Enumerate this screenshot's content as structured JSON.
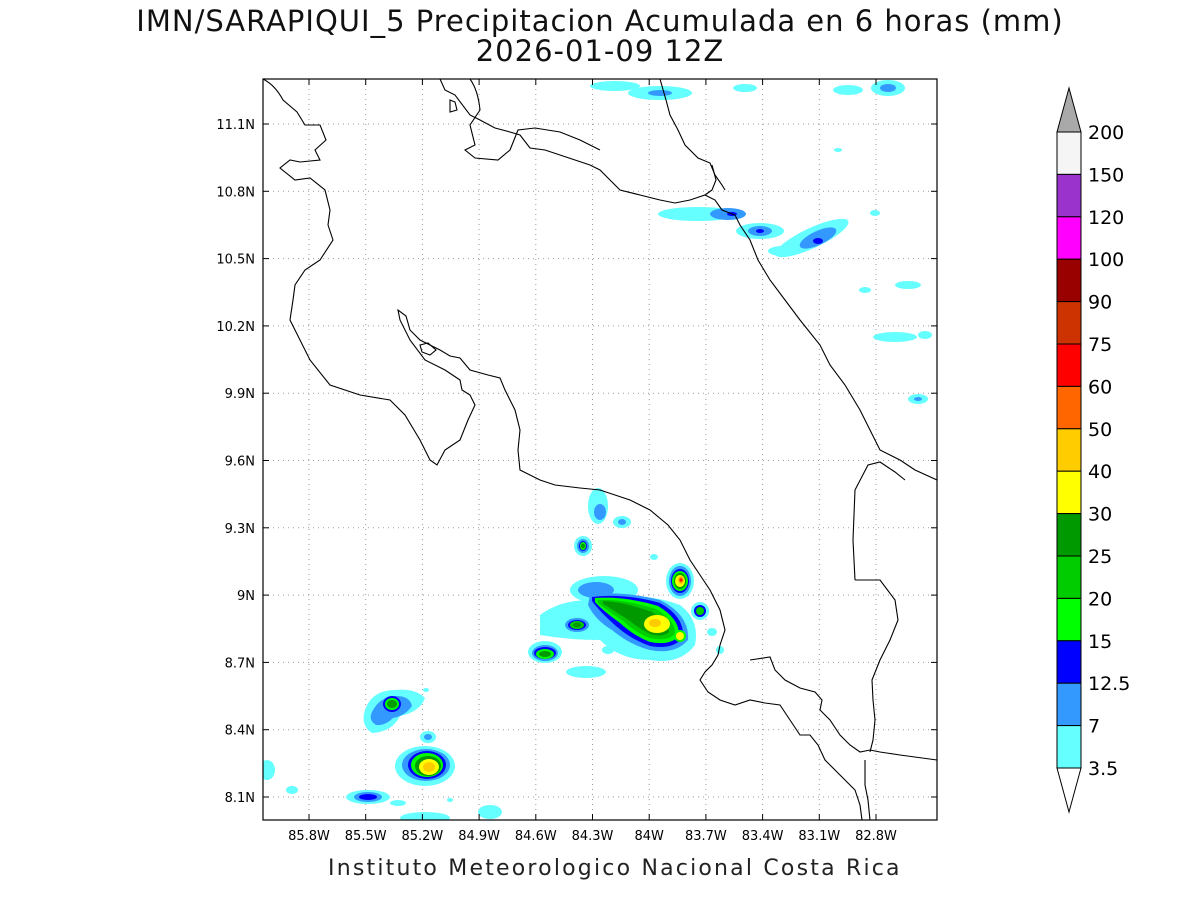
{
  "title_line1": "IMN/SARAPIQUI_5 Precipitacion Acumulada en 6 horas (mm)",
  "title_line2": "2026-01-09 12Z",
  "footer": "Instituto Meteorologico Nacional Costa Rica",
  "map": {
    "lon_range": [
      -86.0,
      -83.0
    ],
    "lat_range": [
      8.0,
      11.2
    ],
    "lon_ticks": [
      "85.8W",
      "85.5W",
      "85.2W",
      "84.9W",
      "84.6W",
      "84.3W",
      "84W",
      "83.7W",
      "83.4W",
      "83.1W",
      "82.8W"
    ],
    "lat_ticks": [
      "11.1N",
      "10.8N",
      "10.5N",
      "10.2N",
      "9.9N",
      "9.6N",
      "9.3N",
      "9N",
      "8.7N",
      "8.4N",
      "8.1N"
    ],
    "grid": "dotted"
  },
  "colorbar": {
    "labels": [
      "200",
      "150",
      "120",
      "100",
      "90",
      "75",
      "60",
      "50",
      "40",
      "30",
      "25",
      "20",
      "15",
      "12.5",
      "7",
      "3.5"
    ],
    "colors": [
      "#a9a9a9",
      "#f5f5f5",
      "#9933cc",
      "#ff00ff",
      "#990000",
      "#cc3300",
      "#ff0000",
      "#ff6600",
      "#ffcc00",
      "#ffff00",
      "#009900",
      "#00cc00",
      "#00ff00",
      "#0000ff",
      "#3399ff",
      "#66ffff",
      "#ffffff"
    ]
  }
}
